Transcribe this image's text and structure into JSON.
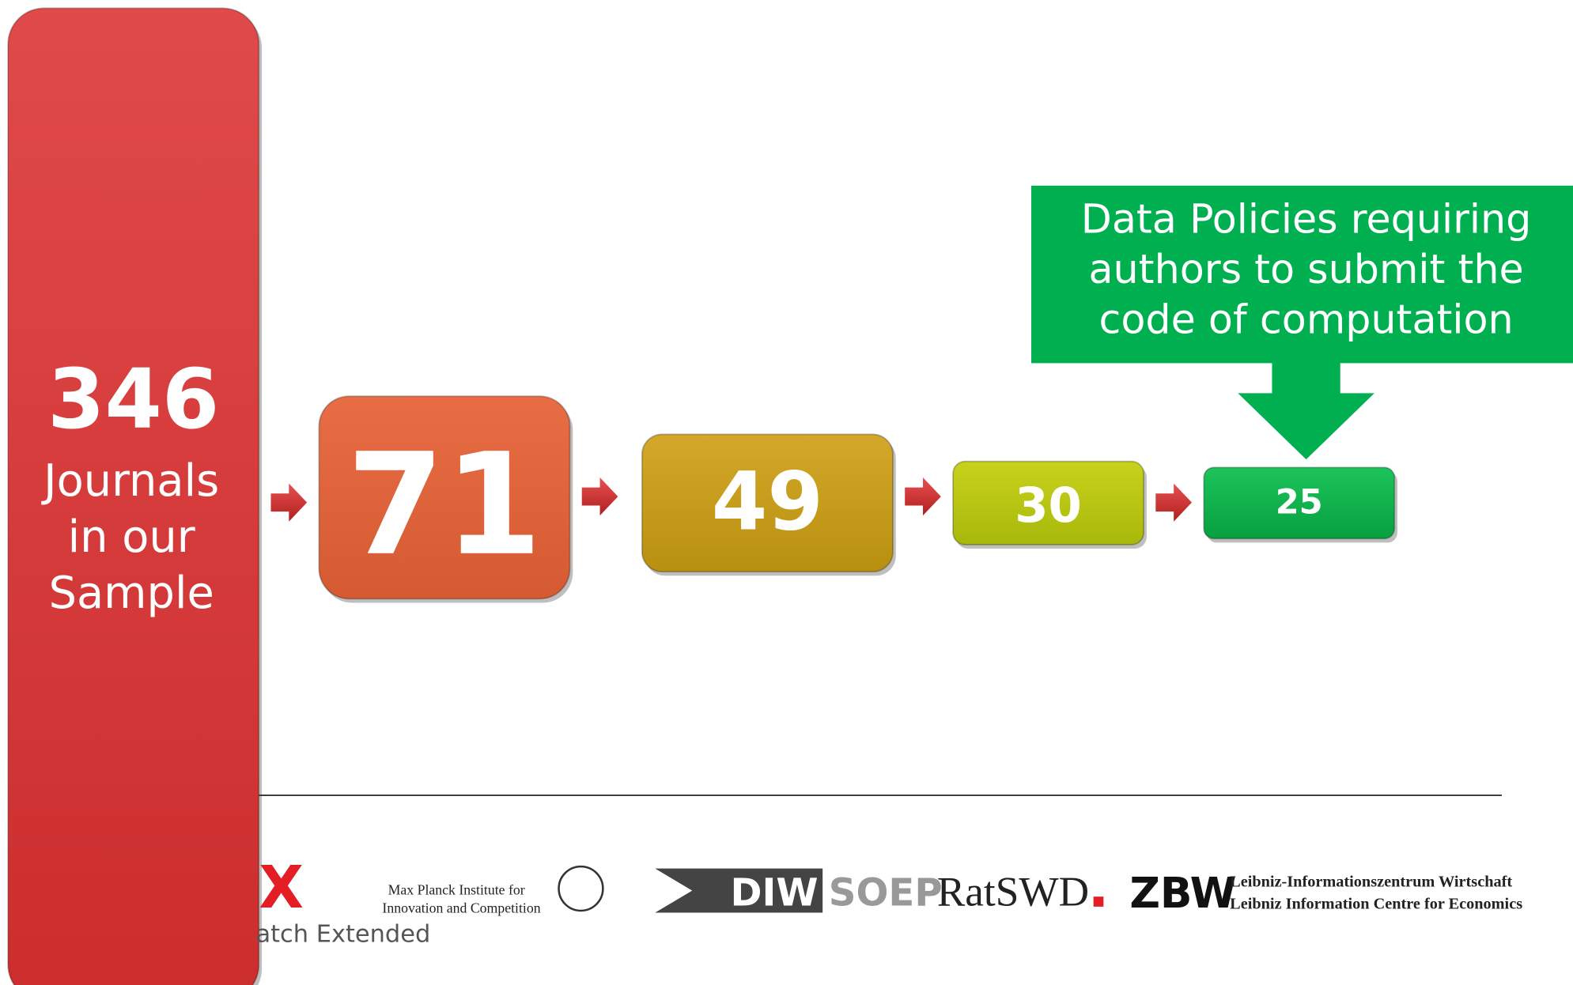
{
  "boxes": [
    {
      "value": 346,
      "label": [
        "Journals",
        "in our",
        "Sample"
      ]
    },
    {
      "value": 71
    },
    {
      "value": 49
    },
    {
      "value": 30
    },
    {
      "value": 25
    }
  ],
  "callout": [
    "Data Policies requiring",
    "authors to submit the",
    "code of computation"
  ],
  "logos": {
    "edawax_mark": "X",
    "edawax_text": "atch Extended",
    "mpi": [
      "Max Planck Institute for",
      "Innovation and Competition"
    ],
    "diw": "DIW",
    "soep": "SOEP",
    "ratswd": "RatSWD",
    "zbw": "ZBW",
    "zbw_text": [
      "Leibniz-Informationszentrum Wirtschaft",
      "Leibniz Information Centre for Economics"
    ]
  }
}
